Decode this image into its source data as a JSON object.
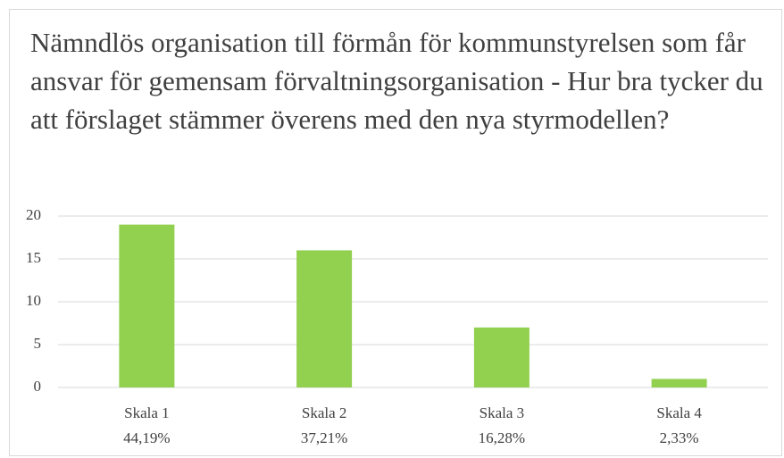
{
  "chart_data": {
    "type": "bar",
    "title": "Nämndlös organisation till förmån för kommunstyrelsen som får ansvar för gemensam förvaltningsorganisation - Hur bra tycker du att förslaget stämmer överens med den nya styrmodellen?",
    "categories": [
      "Skala 1",
      "Skala 2",
      "Skala 3",
      "Skala 4"
    ],
    "shares": [
      "44,19%",
      "37,21%",
      "16,28%",
      "2,33%"
    ],
    "values": [
      19,
      16,
      7,
      1
    ],
    "color": "#92d050",
    "ylim": [
      0,
      20
    ],
    "yticks": [
      0,
      5,
      10,
      15,
      20
    ],
    "grid": true
  }
}
